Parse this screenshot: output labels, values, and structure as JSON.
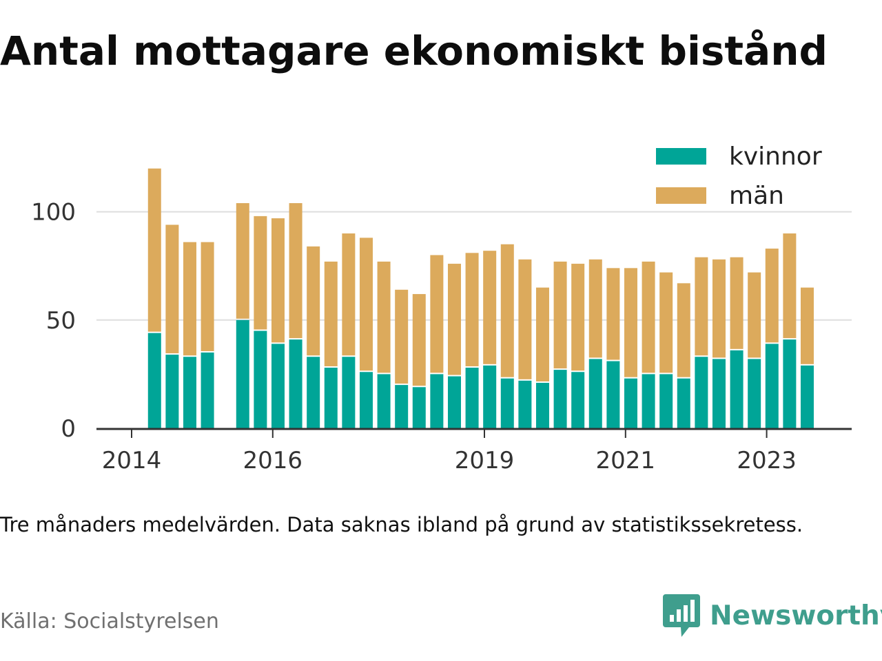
{
  "title": "Antal mottagare ekonomiskt bistånd",
  "note": "Tre månaders medelvärden. Data saknas ibland på grund av statistikssekretess.",
  "source": "Källa: Socialstyrelsen",
  "brand": {
    "name": "Newsworthy",
    "icon": "newsworthy-logo-icon",
    "color": "#3f9e8d"
  },
  "chart_data": {
    "type": "bar",
    "stacked": true,
    "ylim": [
      0,
      125
    ],
    "yticks": [
      0,
      50,
      100
    ],
    "grid": true,
    "legend_position": "top-right",
    "x_ticks": [
      {
        "label": "2014",
        "at": 0.0
      },
      {
        "label": "2016",
        "at": 8.0
      },
      {
        "label": "2019",
        "at": 20.0
      },
      {
        "label": "2021",
        "at": 28.0
      },
      {
        "label": "2023",
        "at": 36.0
      }
    ],
    "series": [
      {
        "name": "kvinnor",
        "color": "#00a597"
      },
      {
        "name": "män",
        "color": "#dcaa5c"
      }
    ],
    "bars": [
      {
        "x": 1.3,
        "kvinnor": 44,
        "man": 76
      },
      {
        "x": 2.3,
        "kvinnor": 34,
        "man": 60
      },
      {
        "x": 3.3,
        "kvinnor": 33,
        "man": 53
      },
      {
        "x": 4.3,
        "kvinnor": 35,
        "man": 51
      },
      {
        "x": 6.3,
        "kvinnor": 50,
        "man": 54
      },
      {
        "x": 7.3,
        "kvinnor": 45,
        "man": 53
      },
      {
        "x": 8.3,
        "kvinnor": 39,
        "man": 58
      },
      {
        "x": 9.3,
        "kvinnor": 41,
        "man": 63
      },
      {
        "x": 10.3,
        "kvinnor": 33,
        "man": 51
      },
      {
        "x": 11.3,
        "kvinnor": 28,
        "man": 49
      },
      {
        "x": 12.3,
        "kvinnor": 33,
        "man": 57
      },
      {
        "x": 13.3,
        "kvinnor": 26,
        "man": 62
      },
      {
        "x": 14.3,
        "kvinnor": 25,
        "man": 52
      },
      {
        "x": 15.3,
        "kvinnor": 20,
        "man": 44
      },
      {
        "x": 16.3,
        "kvinnor": 19,
        "man": 43
      },
      {
        "x": 17.3,
        "kvinnor": 25,
        "man": 55
      },
      {
        "x": 18.3,
        "kvinnor": 24,
        "man": 52
      },
      {
        "x": 19.3,
        "kvinnor": 28,
        "man": 53
      },
      {
        "x": 20.3,
        "kvinnor": 29,
        "man": 53
      },
      {
        "x": 21.3,
        "kvinnor": 23,
        "man": 62
      },
      {
        "x": 22.3,
        "kvinnor": 22,
        "man": 56
      },
      {
        "x": 23.3,
        "kvinnor": 21,
        "man": 44
      },
      {
        "x": 24.3,
        "kvinnor": 27,
        "man": 50
      },
      {
        "x": 25.3,
        "kvinnor": 26,
        "man": 50
      },
      {
        "x": 26.3,
        "kvinnor": 32,
        "man": 46
      },
      {
        "x": 27.3,
        "kvinnor": 31,
        "man": 43
      },
      {
        "x": 28.3,
        "kvinnor": 23,
        "man": 51
      },
      {
        "x": 29.3,
        "kvinnor": 25,
        "man": 52
      },
      {
        "x": 30.3,
        "kvinnor": 25,
        "man": 47
      },
      {
        "x": 31.3,
        "kvinnor": 23,
        "man": 44
      },
      {
        "x": 32.3,
        "kvinnor": 33,
        "man": 46
      },
      {
        "x": 33.3,
        "kvinnor": 32,
        "man": 46
      },
      {
        "x": 34.3,
        "kvinnor": 36,
        "man": 43
      },
      {
        "x": 35.3,
        "kvinnor": 32,
        "man": 40
      },
      {
        "x": 36.3,
        "kvinnor": 39,
        "man": 44
      },
      {
        "x": 37.3,
        "kvinnor": 41,
        "man": 49
      },
      {
        "x": 38.3,
        "kvinnor": 29,
        "man": 36
      }
    ]
  }
}
